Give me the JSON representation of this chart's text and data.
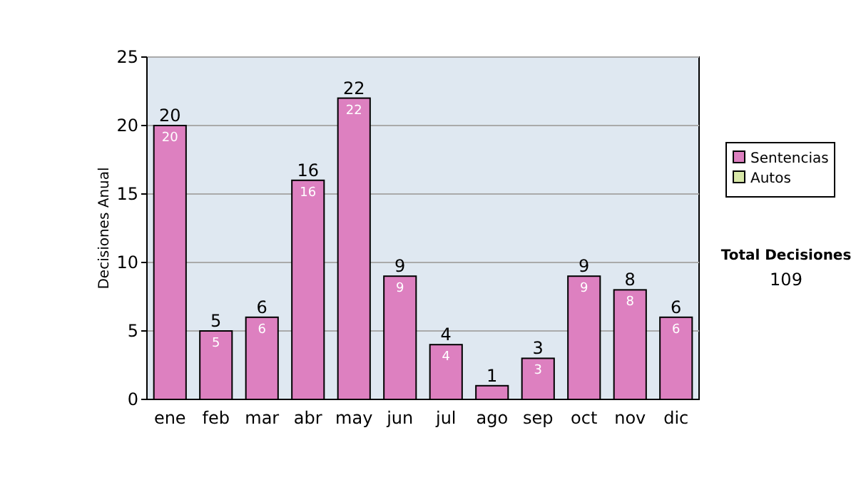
{
  "chart_data": {
    "type": "bar",
    "stacked": true,
    "ylabel": "Decisiones Anual",
    "categories": [
      "ene",
      "feb",
      "mar",
      "abr",
      "may",
      "jun",
      "jul",
      "ago",
      "sep",
      "oct",
      "nov",
      "dic"
    ],
    "series": [
      {
        "name": "Sentencias",
        "color": "#dd80c0",
        "values": [
          20,
          5,
          6,
          16,
          22,
          9,
          4,
          1,
          3,
          9,
          8,
          6
        ],
        "value_labels": [
          "20",
          "5",
          "6",
          "16",
          "22",
          "9",
          "4",
          null,
          "3",
          "9",
          "8",
          "6"
        ]
      },
      {
        "name": "Autos",
        "color": "#d8e8a8",
        "values": [
          0,
          0,
          0,
          0,
          0,
          0,
          0,
          0,
          0,
          0,
          0,
          0
        ],
        "value_labels": [
          null,
          null,
          null,
          null,
          null,
          null,
          null,
          null,
          null,
          null,
          null,
          null
        ]
      }
    ],
    "totals": [
      "20",
      "5",
      "6",
      "16",
      "22",
      "9",
      "4",
      "1",
      "3",
      "9",
      "8",
      "6"
    ],
    "ylim": [
      0,
      25
    ],
    "yticks": [
      0,
      5,
      10,
      15,
      20,
      25
    ],
    "grid": "y",
    "legend": "right",
    "annotations": [
      "Total Decisiones",
      "109"
    ]
  }
}
